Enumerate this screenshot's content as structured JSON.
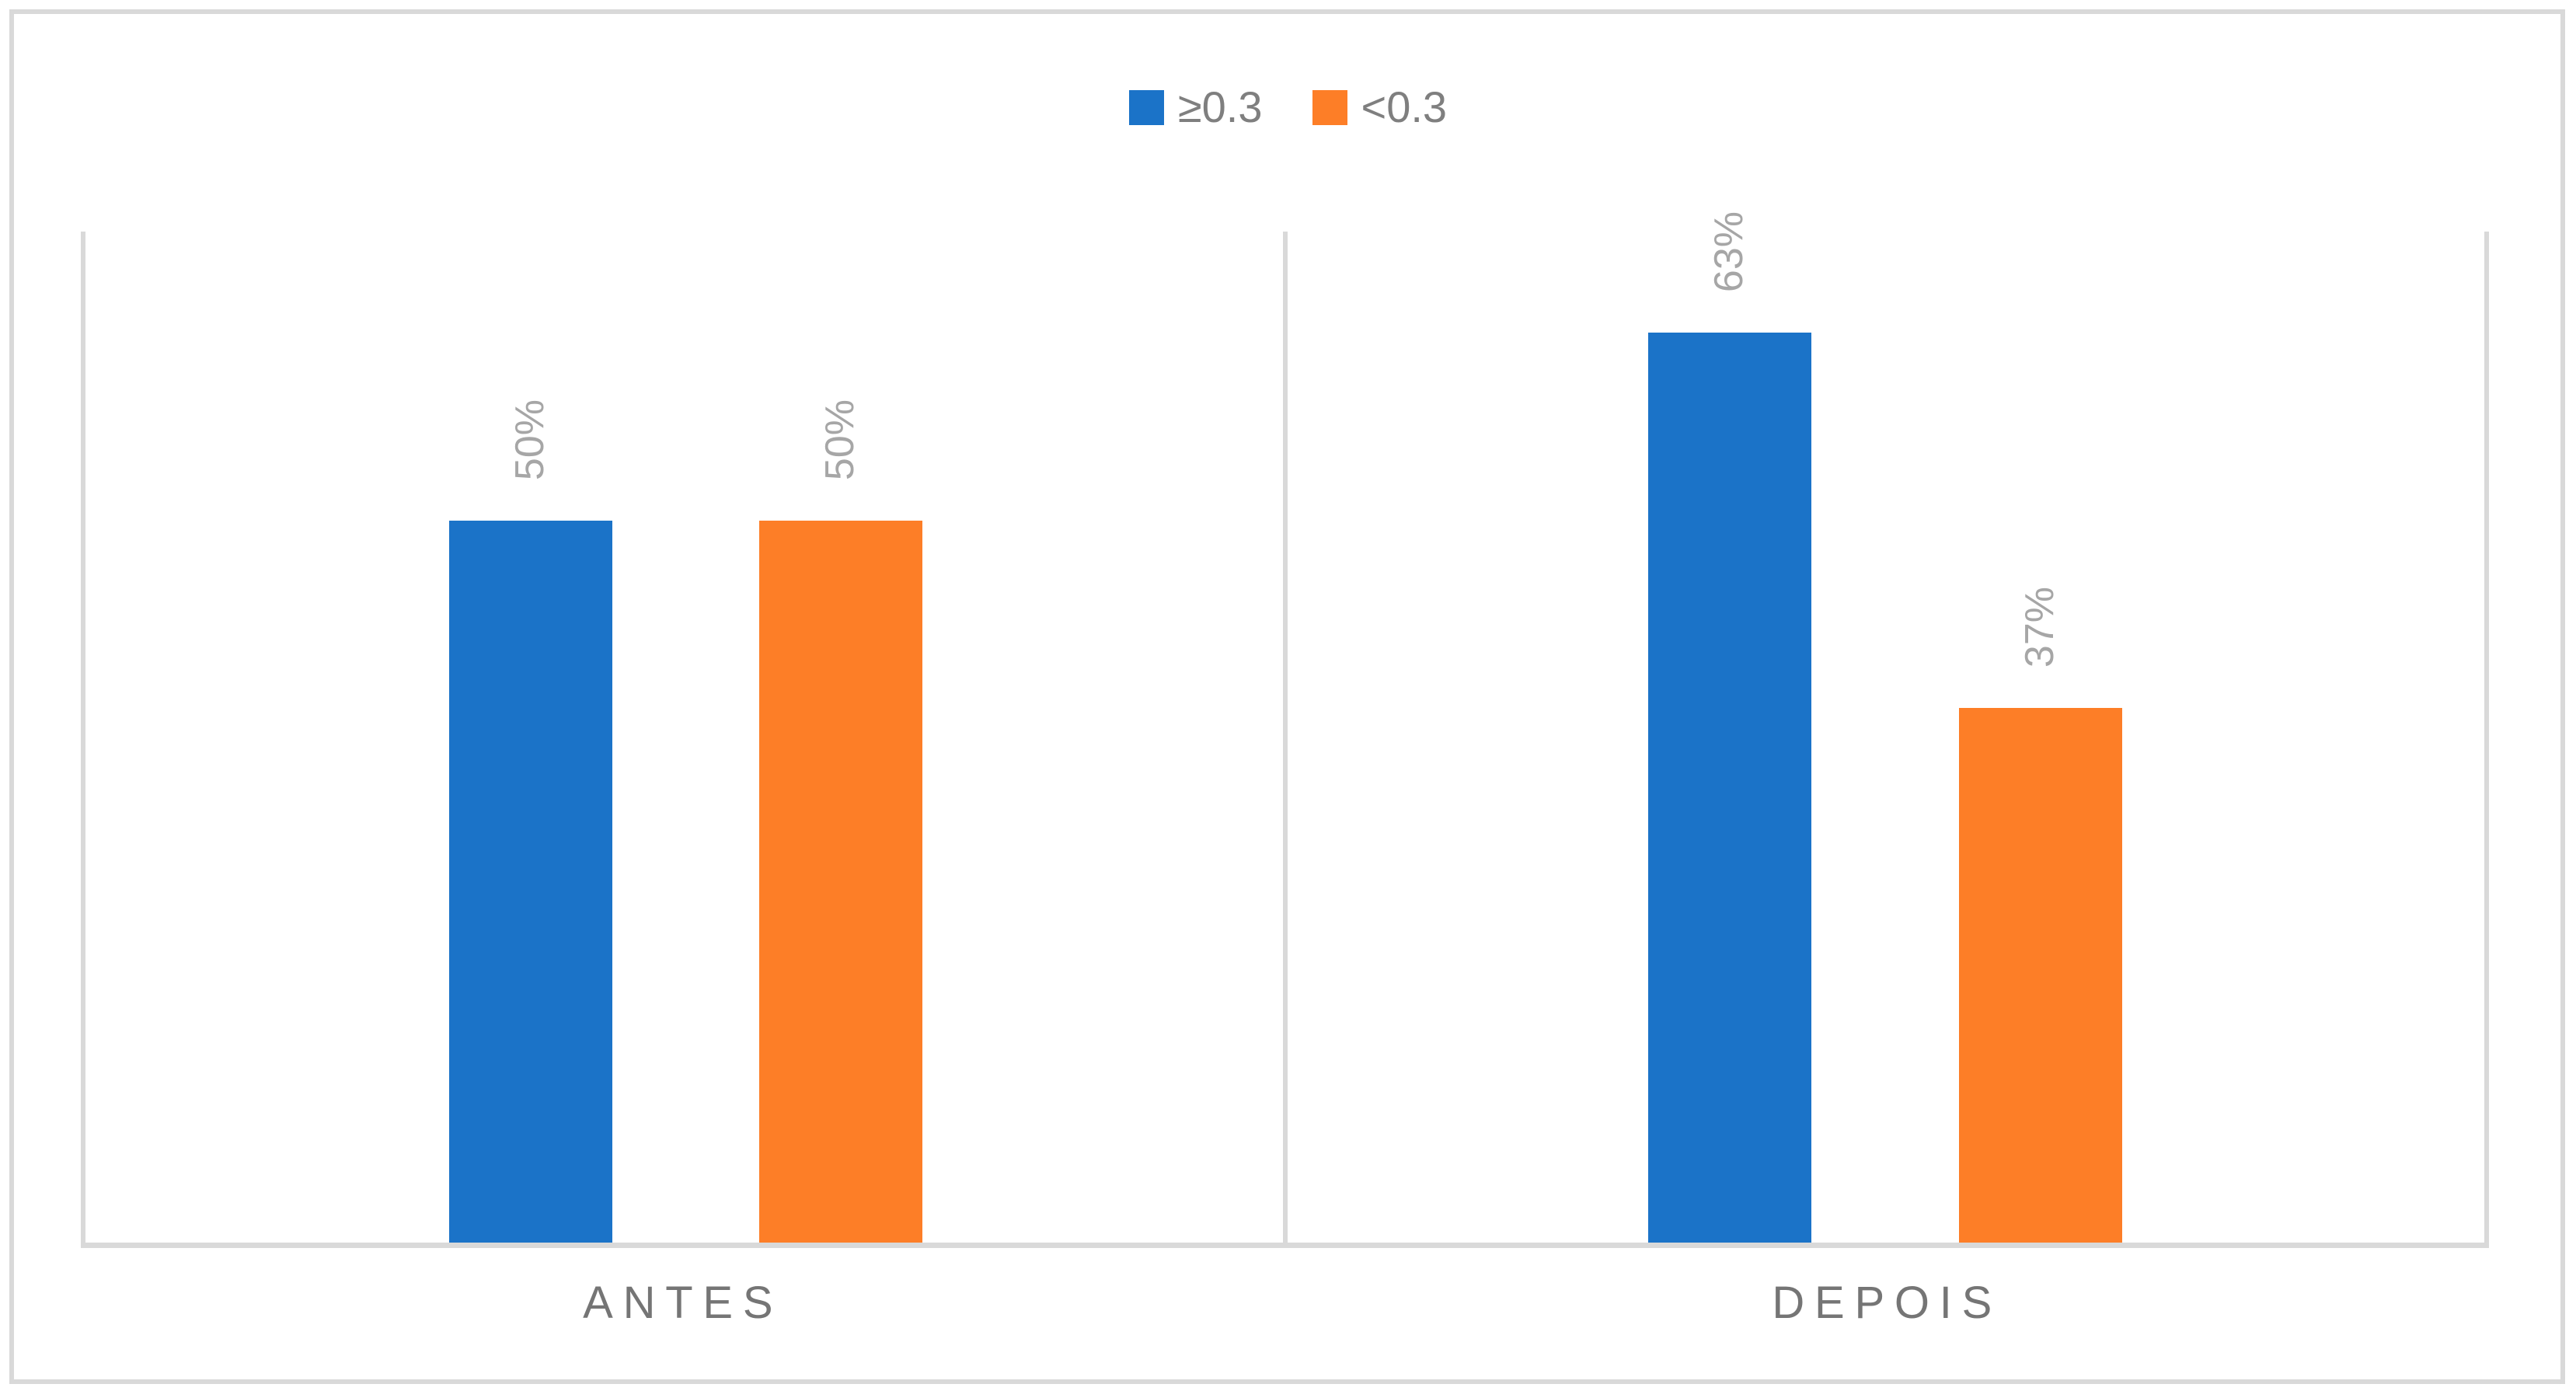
{
  "frame": {
    "border_color": "#d9d9d9",
    "background": "#ffffff"
  },
  "legend": {
    "position": "top-center",
    "items": [
      {
        "label": "≥0.3",
        "color": "#1b73c8"
      },
      {
        "label": "<0.3",
        "color": "#fd7e27"
      }
    ]
  },
  "chart_data": {
    "type": "bar",
    "categories": [
      "ANTES",
      "DEPOIS"
    ],
    "series": [
      {
        "name": "≥0.3",
        "color": "#1b73c8",
        "values": [
          50,
          63
        ]
      },
      {
        "name": "<0.3",
        "color": "#fd7e27",
        "values": [
          50,
          37
        ]
      }
    ],
    "data_labels": [
      [
        "50%",
        "63%"
      ],
      [
        "50%",
        "37%"
      ]
    ],
    "data_label_rotation_deg": -90,
    "data_label_color": "#a6a6a6",
    "xlabel": "",
    "ylabel": "",
    "ylim": [
      0,
      70
    ],
    "y_axis_visible": false,
    "grid": "vertical-category-boundaries",
    "gridline_color": "#d9d9d9",
    "legend_position": "top",
    "category_label_color": "#757575"
  }
}
